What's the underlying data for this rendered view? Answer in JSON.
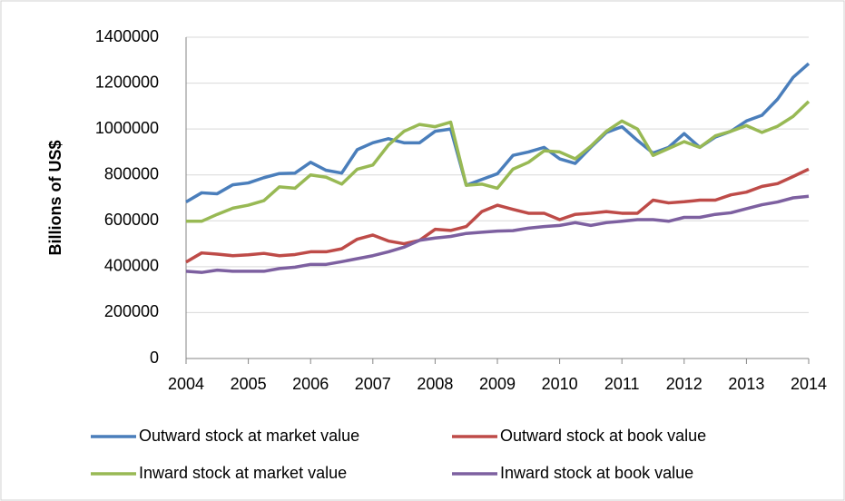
{
  "chart_data": {
    "type": "line",
    "y_label": "Billions of US$",
    "x": [
      2004,
      2004.25,
      2004.5,
      2004.75,
      2005,
      2005.25,
      2005.5,
      2005.75,
      2006,
      2006.25,
      2006.5,
      2006.75,
      2007,
      2007.25,
      2007.5,
      2007.75,
      2008,
      2008.25,
      2008.5,
      2008.75,
      2009,
      2009.25,
      2009.5,
      2009.75,
      2010,
      2010.25,
      2010.5,
      2010.75,
      2011,
      2011.25,
      2011.5,
      2011.75,
      2012,
      2012.25,
      2012.5,
      2012.75,
      2013,
      2013.25,
      2013.5,
      2013.75,
      2014
    ],
    "series": [
      {
        "name": "Outward stock at market value",
        "color": "#4a7ebb",
        "values": [
          682000,
          722000,
          718000,
          757000,
          765000,
          788000,
          806000,
          808000,
          855000,
          820000,
          808000,
          910000,
          940000,
          958000,
          940000,
          940000,
          990000,
          1000000,
          755000,
          780000,
          805000,
          885000,
          900000,
          920000,
          870000,
          850000,
          920000,
          985000,
          1010000,
          950000,
          895000,
          920000,
          980000,
          920000,
          965000,
          990000,
          1035000,
          1060000,
          1130000,
          1225000,
          1285000
        ]
      },
      {
        "name": "Outward stock at book value",
        "color": "#be4b48",
        "values": [
          420000,
          460000,
          455000,
          448000,
          452000,
          458000,
          448000,
          453000,
          465000,
          465000,
          478000,
          520000,
          538000,
          512000,
          500000,
          515000,
          563000,
          558000,
          575000,
          640000,
          668000,
          650000,
          633000,
          633000,
          605000,
          628000,
          633000,
          640000,
          633000,
          633000,
          690000,
          678000,
          683000,
          690000,
          690000,
          713000,
          725000,
          750000,
          762000,
          793000,
          825000
        ]
      },
      {
        "name": "Inward stock at market value",
        "color": "#98b954",
        "values": [
          598000,
          598000,
          628000,
          655000,
          668000,
          688000,
          748000,
          742000,
          800000,
          790000,
          760000,
          825000,
          843000,
          930000,
          990000,
          1020000,
          1010000,
          1030000,
          755000,
          760000,
          742000,
          825000,
          855000,
          905000,
          900000,
          870000,
          925000,
          990000,
          1035000,
          1000000,
          885000,
          915000,
          945000,
          920000,
          970000,
          990000,
          1015000,
          985000,
          1012000,
          1055000,
          1120000
        ]
      },
      {
        "name": "Inward stock at book value",
        "color": "#7d60a0",
        "values": [
          380000,
          375000,
          385000,
          380000,
          380000,
          380000,
          392000,
          398000,
          410000,
          410000,
          422000,
          435000,
          448000,
          465000,
          485000,
          515000,
          525000,
          532000,
          545000,
          550000,
          555000,
          557000,
          568000,
          575000,
          580000,
          592000,
          580000,
          592000,
          598000,
          605000,
          605000,
          598000,
          615000,
          615000,
          628000,
          635000,
          653000,
          670000,
          682000,
          700000,
          707000
        ]
      }
    ],
    "xlim": [
      2004,
      2014
    ],
    "xticks": [
      2004,
      2005,
      2006,
      2007,
      2008,
      2009,
      2010,
      2011,
      2012,
      2013,
      2014
    ],
    "ylim": [
      0,
      1400000
    ],
    "yticks": [
      0,
      200000,
      400000,
      600000,
      800000,
      1000000,
      1200000,
      1400000
    ],
    "grid": true,
    "legend": "bottom"
  }
}
